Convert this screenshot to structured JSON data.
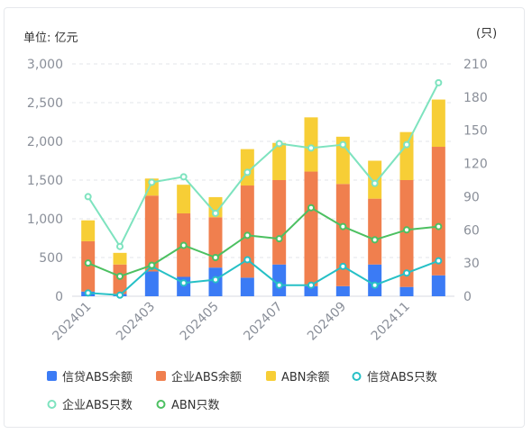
{
  "chart_data": {
    "type": "bar",
    "left_unit": "单位: 亿元",
    "right_unit": "(只)",
    "categories": [
      "202401",
      "202402",
      "202403",
      "202404",
      "202405",
      "202406",
      "202407",
      "202408",
      "202409",
      "202410",
      "202411",
      "202412"
    ],
    "x_tick_labels": [
      "202401",
      "202403",
      "202405",
      "202407",
      "202409",
      "202411"
    ],
    "y_left": {
      "min": 0,
      "max": 3000,
      "ticks": [
        "0",
        "500",
        "1,000",
        "1,500",
        "2,000",
        "2,500",
        "3,000"
      ],
      "tick_values": [
        0,
        500,
        1000,
        1500,
        2000,
        2500,
        3000
      ]
    },
    "y_right": {
      "min": 0,
      "max": 210,
      "ticks": [
        "0",
        "30",
        "60",
        "90",
        "120",
        "150",
        "180",
        "210"
      ],
      "tick_values": [
        0,
        30,
        60,
        90,
        120,
        150,
        180,
        210
      ]
    },
    "grid": true,
    "bar_series": [
      {
        "name": "信贷ABS余额",
        "color": "#3b7bf5",
        "values": [
          60,
          30,
          320,
          250,
          370,
          240,
          410,
          130,
          130,
          410,
          120,
          270
        ]
      },
      {
        "name": "企业ABS余额",
        "color": "#f07f4e",
        "values": [
          650,
          380,
          980,
          820,
          650,
          1190,
          1090,
          1480,
          1320,
          850,
          1380,
          1660
        ]
      },
      {
        "name": "ABN余额",
        "color": "#f7ce36",
        "values": [
          270,
          150,
          220,
          370,
          260,
          470,
          480,
          700,
          610,
          490,
          620,
          610
        ]
      }
    ],
    "line_series": [
      {
        "name": "信贷ABS只数",
        "color": "#26c0c6",
        "values": [
          3,
          1,
          27,
          12,
          15,
          33,
          10,
          10,
          27,
          10,
          21,
          32
        ]
      },
      {
        "name": "企业ABS只数",
        "color": "#7ee3bf",
        "values": [
          90,
          45,
          103,
          108,
          75,
          112,
          138,
          134,
          137,
          102,
          137,
          193
        ]
      },
      {
        "name": "ABN只数",
        "color": "#4cc061",
        "values": [
          30,
          18,
          28,
          46,
          35,
          55,
          52,
          80,
          63,
          51,
          60,
          63
        ]
      }
    ],
    "legend": {
      "position": "bottom",
      "order": [
        "信贷ABS余额",
        "企业ABS余额",
        "ABN余额",
        "信贷ABS只数",
        "企业ABS只数",
        "ABN只数"
      ]
    }
  }
}
